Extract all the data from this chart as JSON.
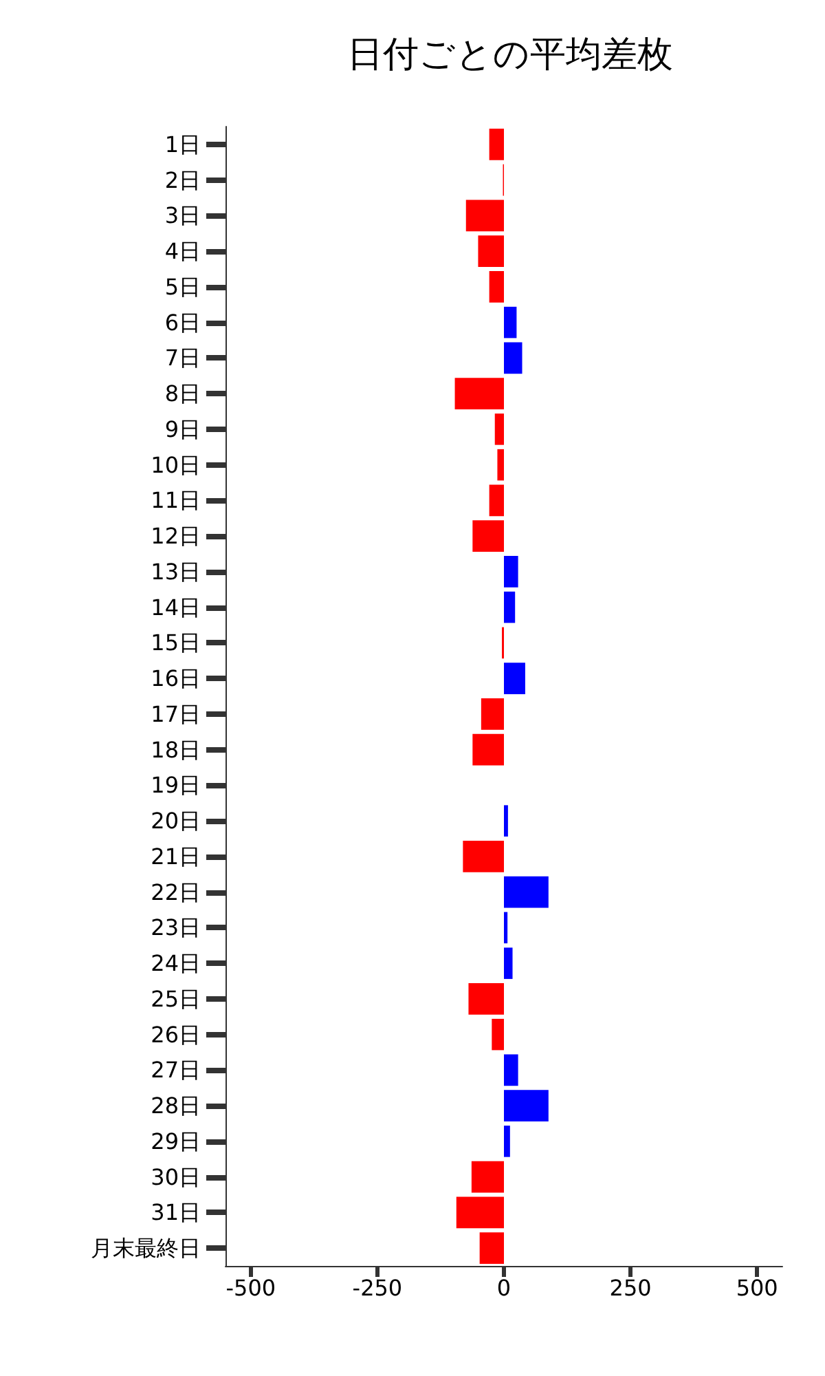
{
  "chart_data": {
    "type": "bar",
    "title": "日付ごとの平均差枚",
    "orientation": "horizontal",
    "categories": [
      "1日",
      "2日",
      "3日",
      "4日",
      "5日",
      "6日",
      "7日",
      "8日",
      "9日",
      "10日",
      "11日",
      "12日",
      "13日",
      "14日",
      "15日",
      "16日",
      "17日",
      "18日",
      "19日",
      "20日",
      "21日",
      "22日",
      "23日",
      "24日",
      "25日",
      "26日",
      "27日",
      "28日",
      "29日",
      "30日",
      "31日",
      "月末最終日"
    ],
    "values": [
      -29,
      -2,
      -75,
      -51,
      -29,
      25,
      36,
      -97,
      -18,
      -13,
      -29,
      -62,
      28,
      22,
      -4,
      42,
      -45,
      -62,
      0,
      8,
      -81,
      88,
      7,
      17,
      -70,
      -24,
      28,
      88,
      12,
      -64,
      -94,
      -48
    ],
    "colors": [
      "#ff0000",
      "#ff0000",
      "#ff0000",
      "#ff0000",
      "#ff0000",
      "#0000ff",
      "#0000ff",
      "#ff0000",
      "#ff0000",
      "#ff0000",
      "#ff0000",
      "#ff0000",
      "#0000ff",
      "#0000ff",
      "#ff0000",
      "#0000ff",
      "#ff0000",
      "#ff0000",
      "#0000ff",
      "#0000ff",
      "#ff0000",
      "#0000ff",
      "#0000ff",
      "#0000ff",
      "#ff0000",
      "#ff0000",
      "#0000ff",
      "#0000ff",
      "#0000ff",
      "#ff0000",
      "#ff0000",
      "#ff0000"
    ],
    "xlim": [
      -550,
      550
    ],
    "xticks": [
      -500,
      -250,
      0,
      250,
      500
    ],
    "grid": false
  }
}
